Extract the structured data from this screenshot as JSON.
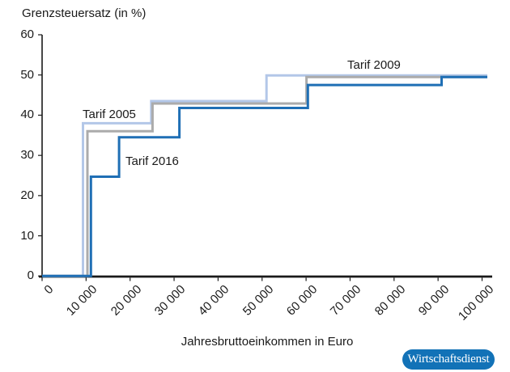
{
  "figure": {
    "title": "Grenzsteuersatz (in %)",
    "xlabel": "Jahresbruttoeinkommen in Euro",
    "branding": "Wirtschaftsdienst"
  },
  "chart_data": {
    "type": "line",
    "line_style": "step",
    "title": "Grenzsteuersatz (in %)",
    "ylabel": "Grenzsteuersatz (in %)",
    "xlabel": "Jahresbruttoeinkommen in Euro",
    "xlim": [
      0,
      101200
    ],
    "ylim": [
      0,
      60
    ],
    "grid": false,
    "legend": "inline-labels",
    "axis_color": "#1a1a1a",
    "y_ticks": [
      0,
      10,
      20,
      30,
      40,
      50,
      60
    ],
    "x_ticks": [
      0,
      10000,
      20000,
      30000,
      40000,
      50000,
      60000,
      70000,
      80000,
      90000,
      100000
    ],
    "x_tick_labels": [
      "0",
      "10 000",
      "20 000",
      "30 000",
      "40 000",
      "50 000",
      "60 000",
      "70 000",
      "80 000",
      "90 000",
      "100 000"
    ],
    "series": [
      {
        "name": "Tarif 2005",
        "color": "#b3c7e8",
        "steps": [
          {
            "income_from": 0,
            "rate": 0
          },
          {
            "income_from": 9300,
            "rate": 38
          },
          {
            "income_from": 24800,
            "rate": 43.5
          },
          {
            "income_from": 51000,
            "rate": 49.9
          }
        ],
        "label": {
          "text": "Tarif 2005",
          "x": 9200,
          "y": 41.9
        }
      },
      {
        "name": "Tarif 2009",
        "color": "#ababab",
        "steps": [
          {
            "income_from": 0,
            "rate": 0
          },
          {
            "income_from": 10300,
            "rate": 36
          },
          {
            "income_from": 25100,
            "rate": 42.9
          },
          {
            "income_from": 60100,
            "rate": 49.5
          }
        ],
        "label": {
          "text": "Tarif 2009",
          "x": 69350,
          "y": 54.2
        }
      },
      {
        "name": "Tarif 2016",
        "color": "#1f6fb5",
        "steps": [
          {
            "income_from": 0,
            "rate": 0
          },
          {
            "income_from": 11100,
            "rate": 24.7
          },
          {
            "income_from": 17500,
            "rate": 34.5
          },
          {
            "income_from": 31200,
            "rate": 41.8
          },
          {
            "income_from": 60400,
            "rate": 47.5
          },
          {
            "income_from": 90800,
            "rate": 49.5
          }
        ],
        "label": {
          "text": "Tarif 2016",
          "x": 18950,
          "y": 30.2
        }
      }
    ],
    "branding_badge": {
      "text": "Wirtschaftsdienst",
      "bg_color": "#1272b7",
      "text_color": "#ffffff"
    }
  }
}
